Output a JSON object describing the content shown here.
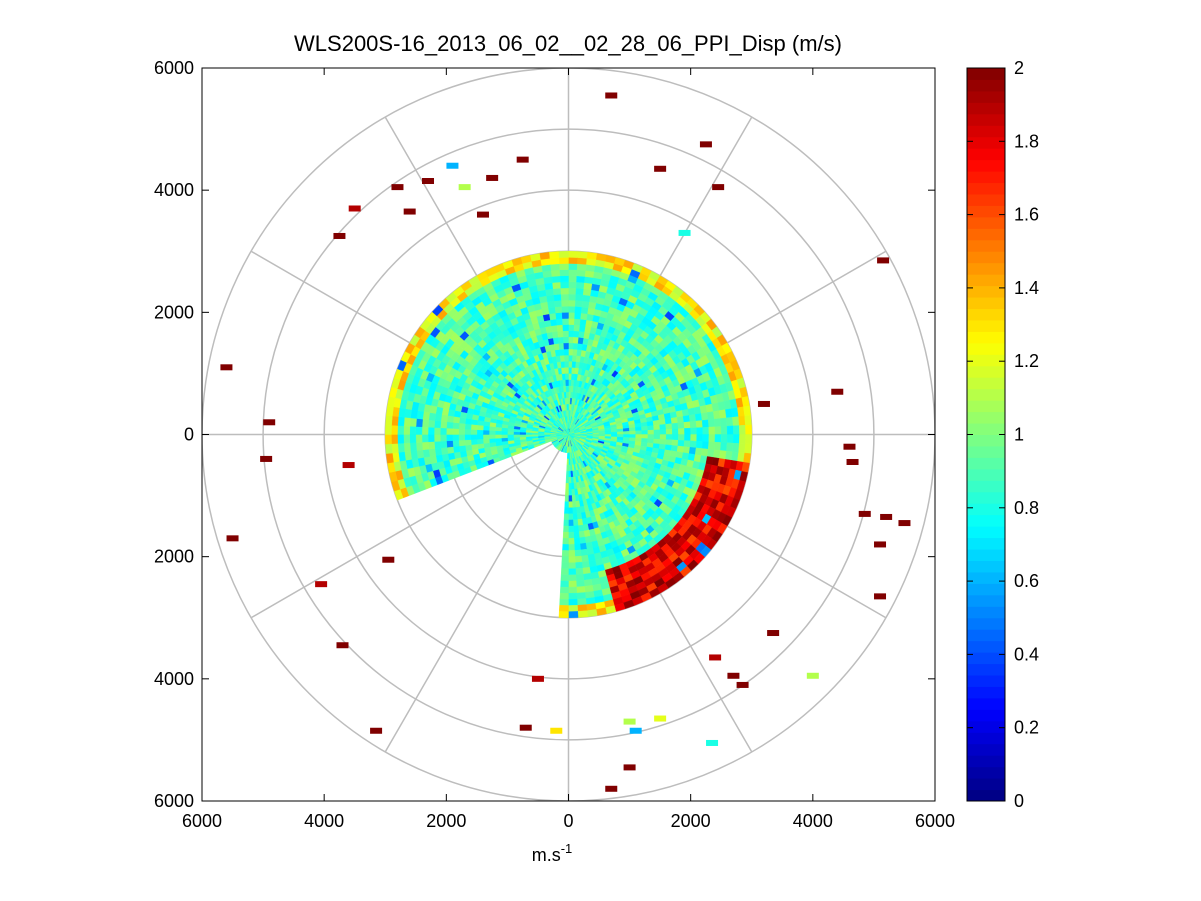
{
  "chart_data": {
    "type": "heatmap",
    "subtype": "polar-ppi",
    "title": "WLS200S-16_2013_06_02__02_28_06_PPI_Disp (m/s)",
    "xlabel": "m.s",
    "xlabel_superscript": "-1",
    "ylabel": "",
    "xlim": [
      -6000,
      6000
    ],
    "ylim": [
      -6000,
      6000
    ],
    "x_ticks": [
      {
        "value": -6000,
        "label": "6000"
      },
      {
        "value": -4000,
        "label": "4000"
      },
      {
        "value": -2000,
        "label": "2000"
      },
      {
        "value": 0,
        "label": "0"
      },
      {
        "value": 2000,
        "label": "2000"
      },
      {
        "value": 4000,
        "label": "4000"
      },
      {
        "value": 6000,
        "label": "6000"
      }
    ],
    "y_ticks": [
      {
        "value": 6000,
        "label": "6000"
      },
      {
        "value": 4000,
        "label": "4000"
      },
      {
        "value": 2000,
        "label": "2000"
      },
      {
        "value": 0,
        "label": "0"
      },
      {
        "value": -2000,
        "label": "2000"
      },
      {
        "value": -4000,
        "label": "4000"
      },
      {
        "value": -6000,
        "label": "6000"
      }
    ],
    "polar_rings": [
      1000,
      2000,
      3000,
      4000,
      5000,
      6000
    ],
    "polar_spokes_deg": [
      0,
      30,
      60,
      90,
      120,
      150,
      180,
      210,
      240,
      270,
      300,
      330
    ],
    "colorbar": {
      "min": 0,
      "max": 2,
      "colormap": "jet",
      "ticks": [
        {
          "value": 0,
          "label": "0"
        },
        {
          "value": 0.2,
          "label": "0.2"
        },
        {
          "value": 0.4,
          "label": "0.4"
        },
        {
          "value": 0.6,
          "label": "0.6"
        },
        {
          "value": 0.8,
          "label": "0.8"
        },
        {
          "value": 1,
          "label": "1"
        },
        {
          "value": 1.2,
          "label": "1.2"
        },
        {
          "value": 1.4,
          "label": "1.4"
        },
        {
          "value": 1.6,
          "label": "1.6"
        },
        {
          "value": 1.8,
          "label": "1.8"
        },
        {
          "value": 2,
          "label": "2"
        }
      ]
    },
    "field": {
      "description": "Per-cell dispersion values (m/s); dense coverage within ~3000 m, bulk ~0.9 m/s, high values (>1.8) concentrated in south-east sector",
      "core_radius_m": 3000,
      "bulk_value": 0.9,
      "gap_sector_deg": [
        180,
        250
      ],
      "high_value_sector_deg": [
        100,
        165
      ]
    },
    "outliers": [
      {
        "x": 700,
        "y": 5550,
        "v": 2.0
      },
      {
        "x": 2250,
        "y": 4750,
        "v": 2.0
      },
      {
        "x": 1500,
        "y": 4350,
        "v": 2.0
      },
      {
        "x": 2450,
        "y": 4050,
        "v": 2.0
      },
      {
        "x": -750,
        "y": 4500,
        "v": 2.0
      },
      {
        "x": -1900,
        "y": 4400,
        "v": 0.6
      },
      {
        "x": -1250,
        "y": 4200,
        "v": 2.0
      },
      {
        "x": -2300,
        "y": 4150,
        "v": 2.0
      },
      {
        "x": -1700,
        "y": 4050,
        "v": 1.1
      },
      {
        "x": -2800,
        "y": 4050,
        "v": 2.0
      },
      {
        "x": -3500,
        "y": 3700,
        "v": 1.9
      },
      {
        "x": -2600,
        "y": 3650,
        "v": 2.0
      },
      {
        "x": -3750,
        "y": 3250,
        "v": 2.0
      },
      {
        "x": -1400,
        "y": 3600,
        "v": 2.0
      },
      {
        "x": 1900,
        "y": 3300,
        "v": 0.8
      },
      {
        "x": 5150,
        "y": 2850,
        "v": 2.0
      },
      {
        "x": -5600,
        "y": 1100,
        "v": 2.0
      },
      {
        "x": 4400,
        "y": 700,
        "v": 2.0
      },
      {
        "x": 4600,
        "y": -200,
        "v": 2.0
      },
      {
        "x": 3200,
        "y": 500,
        "v": 2.0
      },
      {
        "x": -4950,
        "y": -400,
        "v": 2.0
      },
      {
        "x": -3600,
        "y": -500,
        "v": 1.9
      },
      {
        "x": -4900,
        "y": 200,
        "v": 2.0
      },
      {
        "x": 4650,
        "y": -450,
        "v": 2.0
      },
      {
        "x": 4850,
        "y": -1300,
        "v": 2.0
      },
      {
        "x": 5200,
        "y": -1350,
        "v": 2.0
      },
      {
        "x": 5500,
        "y": -1450,
        "v": 2.0
      },
      {
        "x": 5100,
        "y": -1800,
        "v": 2.0
      },
      {
        "x": 5100,
        "y": -2650,
        "v": 2.0
      },
      {
        "x": -5500,
        "y": -1700,
        "v": 2.0
      },
      {
        "x": -2950,
        "y": -2050,
        "v": 2.0
      },
      {
        "x": -4050,
        "y": -2450,
        "v": 1.9
      },
      {
        "x": -3700,
        "y": -3450,
        "v": 2.0
      },
      {
        "x": -3150,
        "y": -4850,
        "v": 2.0
      },
      {
        "x": -700,
        "y": -4800,
        "v": 2.0
      },
      {
        "x": 700,
        "y": -5800,
        "v": 2.0
      },
      {
        "x": 1000,
        "y": -5450,
        "v": 2.0
      },
      {
        "x": 2400,
        "y": -3650,
        "v": 1.9
      },
      {
        "x": 2700,
        "y": -3950,
        "v": 2.0
      },
      {
        "x": 3350,
        "y": -3250,
        "v": 2.0
      },
      {
        "x": 4000,
        "y": -3950,
        "v": 1.1
      },
      {
        "x": 2350,
        "y": -5050,
        "v": 0.8
      },
      {
        "x": 1500,
        "y": -4650,
        "v": 1.2
      },
      {
        "x": 1000,
        "y": -4700,
        "v": 1.1
      },
      {
        "x": 1100,
        "y": -4850,
        "v": 0.6
      },
      {
        "x": -200,
        "y": -4850,
        "v": 1.3
      },
      {
        "x": -500,
        "y": -4000,
        "v": 1.9
      },
      {
        "x": 2850,
        "y": -4100,
        "v": 2.0
      }
    ]
  }
}
